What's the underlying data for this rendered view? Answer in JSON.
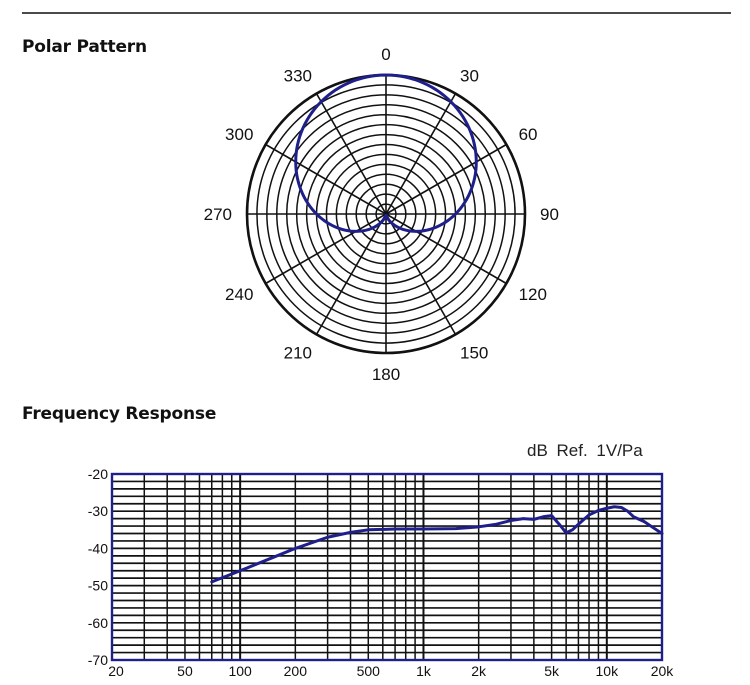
{
  "sections": {
    "polar_title": "Polar Pattern",
    "frequency_title": "Frequency Response"
  },
  "chart_data": [
    {
      "type": "polar",
      "title": "",
      "angle_labels": [
        "0",
        "30",
        "60",
        "90",
        "120",
        "150",
        "180",
        "210",
        "240",
        "270",
        "300",
        "330"
      ],
      "angles_deg": [
        0,
        30,
        60,
        90,
        120,
        150,
        180,
        210,
        240,
        270,
        300,
        330
      ],
      "rings": 14,
      "grid": true,
      "series": [
        {
          "pattern": "cardioid",
          "color": "#1f1f8c",
          "note_values": "relative response: r = (1 + cos(theta)) / 2"
        }
      ],
      "colors": {
        "grid": "#111111",
        "curve": "#1f1f8c"
      }
    },
    {
      "type": "line",
      "title": "",
      "ref_label": "dB Ref.  1V/Pa",
      "xscale": "log",
      "xlim": [
        20,
        20000
      ],
      "ylim": [
        -70,
        -20
      ],
      "x_tick_labels": [
        "20",
        "50",
        "100",
        "200",
        "500",
        "1k",
        "2k",
        "5k",
        "10k",
        "20k"
      ],
      "x_tick_values": [
        20,
        50,
        100,
        200,
        500,
        1000,
        2000,
        5000,
        10000,
        20000
      ],
      "y_tick_labels": [
        "-20",
        "-30",
        "-40",
        "-50",
        "-60",
        "-70"
      ],
      "y_tick_values": [
        -20,
        -30,
        -40,
        -50,
        -60,
        -70
      ],
      "grid": true,
      "series": [
        {
          "x": [
            70,
            100,
            150,
            200,
            300,
            400,
            500,
            700,
            1000,
            1500,
            2000,
            2500,
            3000,
            3500,
            4000,
            4500,
            5000,
            5500,
            6000,
            6500,
            7000,
            8000,
            9000,
            10000,
            11000,
            12000,
            13000,
            14000,
            16000,
            18000,
            20000
          ],
          "y": [
            -49,
            -46,
            -42.5,
            -40,
            -37,
            -35.7,
            -35,
            -34.8,
            -34.8,
            -34.7,
            -34.2,
            -33.5,
            -32.5,
            -32,
            -32.2,
            -31.5,
            -31.2,
            -33.5,
            -35.8,
            -35,
            -33.5,
            -31,
            -29.8,
            -29.2,
            -28.8,
            -29,
            -30,
            -31.5,
            -32.8,
            -34.5,
            -36
          ],
          "color": "#1f1f8c"
        }
      ],
      "colors": {
        "grid": "#111111",
        "frame": "#1f1f8c",
        "curve": "#1f1f8c"
      }
    }
  ]
}
